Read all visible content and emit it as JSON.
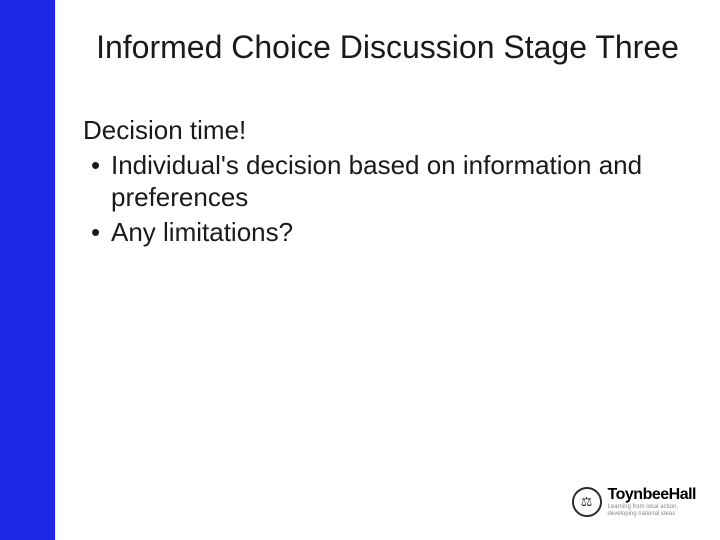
{
  "slide": {
    "sidebar_color": "#1a27e6",
    "background_color": "#ffffff",
    "title": "Informed Choice Discussion Stage Three",
    "title_fontsize": 32,
    "title_color": "#1a1a1a",
    "body_fontsize": 26,
    "body_color": "#1a1a1a",
    "lead": "Decision time!",
    "bullets": [
      "Individual's decision based on information and preferences",
      "Any limitations?"
    ]
  },
  "logo": {
    "seal_glyph": "⚖",
    "name": "Toynbee",
    "name_fontsize": 16,
    "hall": "Hall",
    "tagline1": "Learning from local action,",
    "tagline2": "developing national ideas",
    "tagline_fontsize": 6
  }
}
